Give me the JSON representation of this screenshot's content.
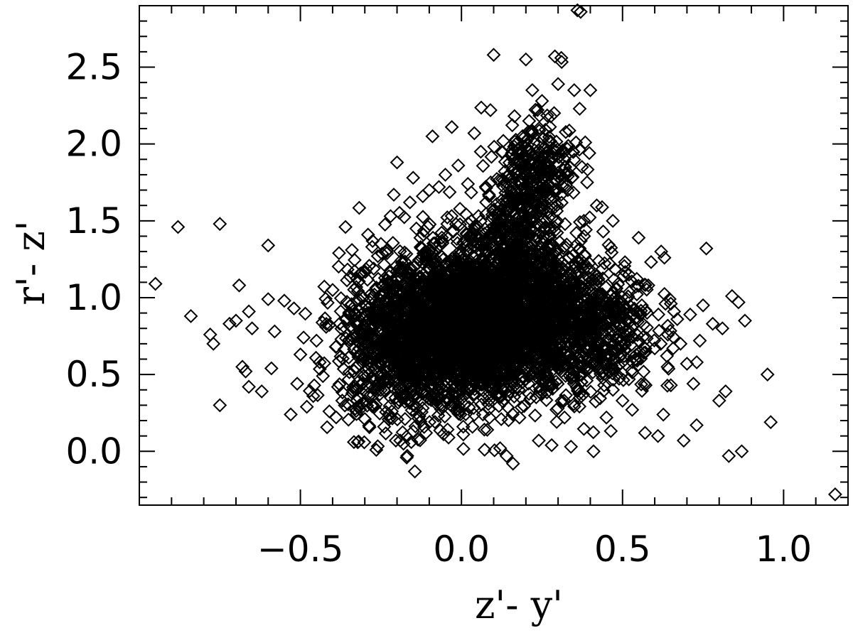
{
  "chart_data": {
    "type": "scatter",
    "title": "",
    "xlabel": "z'- y'",
    "ylabel": "r'- z'",
    "xlim": [
      -1.0,
      1.2
    ],
    "ylim": [
      -0.35,
      2.9
    ],
    "x_ticks": [
      -0.5,
      0.0,
      0.5,
      1.0
    ],
    "x_tick_labels": [
      "−0.5",
      "0.0",
      "0.5",
      "1.0"
    ],
    "y_ticks": [
      0.0,
      0.5,
      1.0,
      1.5,
      2.0,
      2.5
    ],
    "y_tick_labels": [
      "0.0",
      "0.5",
      "1.0",
      "1.5",
      "2.0",
      "2.5"
    ],
    "grid": false,
    "legend": "none",
    "marker": "diamond-open",
    "marker_color": "#000000",
    "series": [
      {
        "points": [
          [
            -0.95,
            1.09
          ],
          [
            -0.88,
            1.46
          ],
          [
            -0.75,
            1.48
          ],
          [
            -0.6,
            1.34
          ],
          [
            -0.84,
            0.88
          ],
          [
            -0.78,
            0.76
          ],
          [
            -0.77,
            0.7
          ],
          [
            -0.75,
            0.3
          ],
          [
            -0.72,
            0.83
          ],
          [
            -0.7,
            0.85
          ],
          [
            -0.69,
            1.08
          ],
          [
            -0.68,
            0.55
          ],
          [
            -0.67,
            0.52
          ],
          [
            -0.66,
            0.42
          ],
          [
            -0.66,
            0.91
          ],
          [
            -0.65,
            0.8
          ],
          [
            -0.62,
            0.39
          ],
          [
            -0.6,
            0.99
          ],
          [
            -0.59,
            0.54
          ],
          [
            -0.58,
            0.78
          ],
          [
            -0.55,
            0.98
          ],
          [
            -0.53,
            0.24
          ],
          [
            -0.52,
            0.93
          ],
          [
            -0.51,
            0.44
          ],
          [
            -0.5,
            0.63
          ],
          [
            -0.49,
            0.74
          ],
          [
            -0.48,
            0.29
          ],
          [
            -0.46,
            0.36
          ],
          [
            -0.45,
            0.72
          ],
          [
            -0.44,
            0.58
          ],
          [
            -0.43,
            0.49
          ],
          [
            -0.42,
            0.81
          ],
          [
            -0.41,
            0.26
          ],
          [
            -0.4,
            1.05
          ],
          [
            -0.39,
            0.68
          ],
          [
            -0.38,
            1.29
          ],
          [
            -0.37,
            0.33
          ],
          [
            -0.36,
            1.46
          ],
          [
            -0.35,
            0.61
          ],
          [
            -0.34,
            1.31
          ],
          [
            -0.33,
            0.4
          ],
          [
            -0.32,
            0.92
          ],
          [
            -0.31,
            1.16
          ],
          [
            -0.3,
            0.21
          ],
          [
            -0.29,
            1.41
          ],
          [
            -0.27,
            0.29
          ],
          [
            -0.26,
            0.55
          ],
          [
            -0.25,
            1.35
          ],
          [
            -0.24,
            0.16
          ],
          [
            -0.22,
            1.53
          ],
          [
            -0.21,
            1.67
          ],
          [
            -0.2,
            1.88
          ],
          [
            -0.19,
            0.07
          ],
          [
            -0.18,
            0.05
          ],
          [
            -0.17,
            -0.04
          ],
          [
            -0.16,
            1.62
          ],
          [
            -0.15,
            1.78
          ],
          [
            -0.14,
            1.45
          ],
          [
            -0.12,
            1.66
          ],
          [
            -0.11,
            0.12
          ],
          [
            -0.1,
            1.7
          ],
          [
            -0.09,
            2.05
          ],
          [
            -0.07,
            1.72
          ],
          [
            -0.05,
            1.8
          ],
          [
            -0.04,
            0.09
          ],
          [
            -0.03,
            2.11
          ],
          [
            -0.01,
            1.86
          ],
          [
            0.02,
            1.74
          ],
          [
            0.04,
            2.07
          ],
          [
            0.06,
            1.95
          ],
          [
            0.08,
            0.14
          ],
          [
            0.09,
            2.22
          ],
          [
            0.1,
            2.58
          ],
          [
            0.12,
            0.02
          ],
          [
            0.13,
            2.02
          ],
          [
            0.14,
            -0.03
          ],
          [
            0.16,
            -0.08
          ],
          [
            0.17,
            1.89
          ],
          [
            0.18,
            0.22
          ],
          [
            0.2,
            2.55
          ],
          [
            0.21,
            2.15
          ],
          [
            0.22,
            2.35
          ],
          [
            0.24,
            0.07
          ],
          [
            0.25,
            2.28
          ],
          [
            0.27,
            2.02
          ],
          [
            0.28,
            0.04
          ],
          [
            0.29,
            2.57
          ],
          [
            0.3,
            2.39
          ],
          [
            0.31,
            2.56
          ],
          [
            0.32,
            0.22
          ],
          [
            0.33,
            1.7
          ],
          [
            0.34,
            0.03
          ],
          [
            0.35,
            2.35
          ],
          [
            0.36,
            2.87
          ],
          [
            0.37,
            2.86
          ],
          [
            0.38,
            1.5
          ],
          [
            0.39,
            1.75
          ],
          [
            0.4,
            2.35
          ],
          [
            0.41,
            0.0
          ],
          [
            0.42,
            1.6
          ],
          [
            0.43,
            0.9
          ],
          [
            0.44,
            1.43
          ],
          [
            0.45,
            0.22
          ],
          [
            0.46,
            1.22
          ],
          [
            0.47,
            1.5
          ],
          [
            0.48,
            0.65
          ],
          [
            0.5,
            0.33
          ],
          [
            0.52,
            1.15
          ],
          [
            0.53,
            0.27
          ],
          [
            0.55,
            1.39
          ],
          [
            0.56,
            0.95
          ],
          [
            0.57,
            0.12
          ],
          [
            0.58,
            1.08
          ],
          [
            0.6,
            0.67
          ],
          [
            0.61,
            0.1
          ],
          [
            0.62,
            1.3
          ],
          [
            0.63,
            1.26
          ],
          [
            0.64,
            0.55
          ],
          [
            0.65,
            0.43
          ],
          [
            0.66,
            0.91
          ],
          [
            0.67,
            0.86
          ],
          [
            0.68,
            0.7
          ],
          [
            0.69,
            0.07
          ],
          [
            0.7,
            0.57
          ],
          [
            0.71,
            0.89
          ],
          [
            0.72,
            0.44
          ],
          [
            0.73,
            0.17
          ],
          [
            0.74,
            0.72
          ],
          [
            0.75,
            0.95
          ],
          [
            0.76,
            1.32
          ],
          [
            0.78,
            0.83
          ],
          [
            0.8,
            0.33
          ],
          [
            0.81,
            0.8
          ],
          [
            0.82,
            0.39
          ],
          [
            0.83,
            -0.03
          ],
          [
            0.84,
            1.01
          ],
          [
            0.86,
            0.97
          ],
          [
            0.87,
            0.0
          ],
          [
            0.88,
            0.85
          ],
          [
            0.95,
            0.5
          ],
          [
            0.96,
            0.19
          ],
          [
            1.16,
            -0.28
          ]
        ],
        "dense_cloud": [
          {
            "cx": 0.06,
            "cy": 0.85,
            "sx": 0.16,
            "sy": 0.25,
            "n": 3600,
            "rho": 0.1
          },
          {
            "cx": 0.2,
            "cy": 1.65,
            "sx": 0.07,
            "sy": 0.28,
            "n": 500,
            "rho": 0.5
          },
          {
            "cx": 0.4,
            "cy": 0.8,
            "sx": 0.1,
            "sy": 0.22,
            "n": 500,
            "rho": 0.0
          },
          {
            "cx": -0.2,
            "cy": 0.65,
            "sx": 0.09,
            "sy": 0.25,
            "n": 500,
            "rho": 0.0
          }
        ]
      }
    ]
  }
}
